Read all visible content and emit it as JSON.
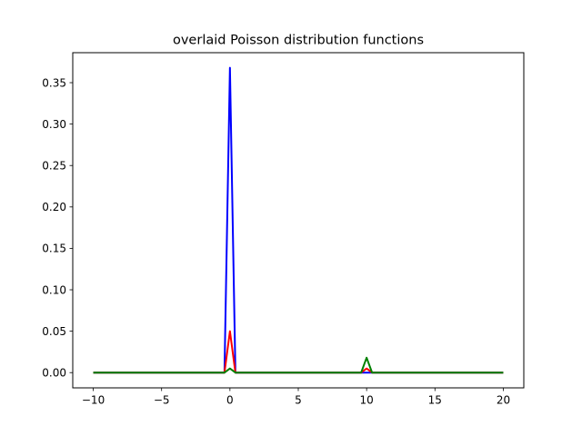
{
  "chart_data": {
    "type": "line",
    "title": "overlaid Poisson distribution functions",
    "xlabel": "",
    "ylabel": "",
    "xlim": [
      -11.5,
      21.5
    ],
    "ylim": [
      -0.0184,
      0.3862
    ],
    "x_ticks": [
      -10,
      -5,
      0,
      5,
      10,
      15,
      20
    ],
    "x_tick_labels": [
      "−10",
      "−5",
      "0",
      "5",
      "10",
      "15",
      "20"
    ],
    "y_ticks": [
      0.0,
      0.05,
      0.1,
      0.15,
      0.2,
      0.25,
      0.3,
      0.35
    ],
    "y_tick_labels": [
      "0.00",
      "0.05",
      "0.10",
      "0.15",
      "0.20",
      "0.25",
      "0.30",
      "0.35"
    ],
    "grid": false,
    "legend": "none",
    "series": [
      {
        "color": "#0000ff",
        "points": [
          [
            -10,
            0
          ],
          [
            -0.4,
            0
          ],
          [
            0,
            0.368
          ],
          [
            0.4,
            0
          ],
          [
            20,
            0
          ]
        ]
      },
      {
        "color": "#ff0000",
        "points": [
          [
            -10,
            0
          ],
          [
            -0.4,
            0
          ],
          [
            0,
            0.05
          ],
          [
            0.4,
            0
          ],
          [
            9.6,
            0
          ],
          [
            10,
            0.005
          ],
          [
            10.4,
            0
          ],
          [
            20,
            0
          ]
        ]
      },
      {
        "color": "#008000",
        "points": [
          [
            -10,
            0
          ],
          [
            -0.4,
            0
          ],
          [
            0,
            0.005
          ],
          [
            0.4,
            0
          ],
          [
            9.6,
            0
          ],
          [
            10,
            0.018
          ],
          [
            10.4,
            0
          ],
          [
            20,
            0
          ]
        ]
      }
    ]
  }
}
